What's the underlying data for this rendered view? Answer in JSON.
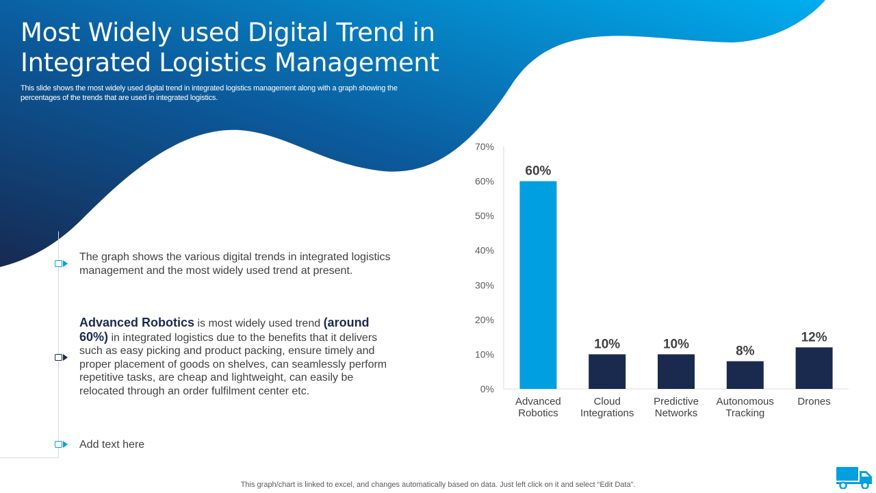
{
  "slide": {
    "title_line1": "Most Widely used Digital Trend in",
    "title_line2": "Integrated Logistics Management",
    "subtitle": "This slide shows the most widely used digital trend in integrated logistics management along with a graph showing the percentages of the trends that are used in integrated logistics."
  },
  "points": {
    "p1": "The graph shows the various digital trends in integrated logistics management and the most widely used trend at present.",
    "p2_highlight": "Advanced Robotics",
    "p2_mid": " is most widely used trend ",
    "p2_bold": "(around 60%)",
    "p2_rest": " in integrated logistics due to the benefits that it delivers such as easy picking and product packing, ensure timely and proper placement of goods on shelves,  can seamlessly perform repetitive tasks, are cheap and lightweight,  can easily be relocated through  an order fulfilment  center etc.",
    "p3": "Add text here"
  },
  "footnote": "This graph/chart is linked to excel,  and changes automatically based on data. Just left click on it and select “Edit Data”.",
  "colors": {
    "highlight_bar": "#00a0e0",
    "dark_bar": "#1a2a4f",
    "wave_dark": "#1a2a4f",
    "wave_light": "#00aeef"
  },
  "chart_data": {
    "type": "bar",
    "categories": [
      [
        "Advanced",
        "Robotics"
      ],
      [
        "Cloud",
        "Integrations"
      ],
      [
        "Predictive",
        "Networks"
      ],
      [
        "Autonomous",
        "Tracking"
      ],
      [
        "Drones"
      ]
    ],
    "values": [
      60,
      10,
      10,
      8,
      12
    ],
    "data_labels": [
      "60%",
      "10%",
      "10%",
      "8%",
      "12%"
    ],
    "highlight_index": 0,
    "yticks": [
      "0%",
      "10%",
      "20%",
      "30%",
      "40%",
      "50%",
      "60%",
      "70%"
    ],
    "ylim": [
      0,
      70
    ],
    "title": "",
    "xlabel": "",
    "ylabel": ""
  }
}
